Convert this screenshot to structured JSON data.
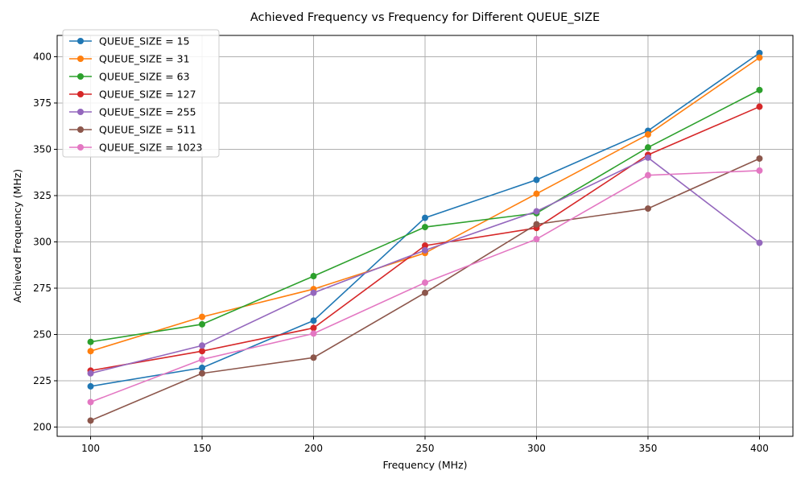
{
  "chart_data": {
    "type": "line",
    "title": "Achieved Frequency vs Frequency for Different QUEUE_SIZE",
    "xlabel": "Frequency (MHz)",
    "ylabel": "Achieved Frequency (MHz)",
    "x": [
      100,
      150,
      200,
      250,
      300,
      350,
      400
    ],
    "xticks": [
      100,
      150,
      200,
      250,
      300,
      350,
      400
    ],
    "yticks": [
      200,
      225,
      250,
      275,
      300,
      325,
      350,
      375,
      400
    ],
    "xlim": [
      85,
      415
    ],
    "ylim": [
      195,
      411.5
    ],
    "grid": true,
    "legend_position": "upper-left",
    "series": [
      {
        "name": "QUEUE_SIZE = 15",
        "color": "#1f77b4",
        "values": [
          222.0,
          232.0,
          257.5,
          313.0,
          333.5,
          360.0,
          402.0
        ]
      },
      {
        "name": "QUEUE_SIZE = 31",
        "color": "#ff7f0e",
        "values": [
          241.0,
          259.5,
          274.5,
          294.0,
          326.0,
          358.0,
          399.5
        ]
      },
      {
        "name": "QUEUE_SIZE = 63",
        "color": "#2ca02c",
        "values": [
          246.0,
          255.5,
          281.5,
          308.0,
          315.5,
          351.0,
          382.0
        ]
      },
      {
        "name": "QUEUE_SIZE = 127",
        "color": "#d62728",
        "values": [
          230.5,
          241.0,
          253.5,
          298.0,
          307.5,
          347.0,
          373.0
        ]
      },
      {
        "name": "QUEUE_SIZE = 255",
        "color": "#9467bd",
        "values": [
          229.0,
          244.0,
          272.5,
          295.5,
          316.5,
          345.5,
          299.5
        ]
      },
      {
        "name": "QUEUE_SIZE = 511",
        "color": "#8c564b",
        "values": [
          203.5,
          229.0,
          237.5,
          272.5,
          309.5,
          318.0,
          345.0
        ]
      },
      {
        "name": "QUEUE_SIZE = 1023",
        "color": "#e377c2",
        "values": [
          213.5,
          236.5,
          250.5,
          278.0,
          301.5,
          336.0,
          338.5
        ]
      }
    ]
  }
}
